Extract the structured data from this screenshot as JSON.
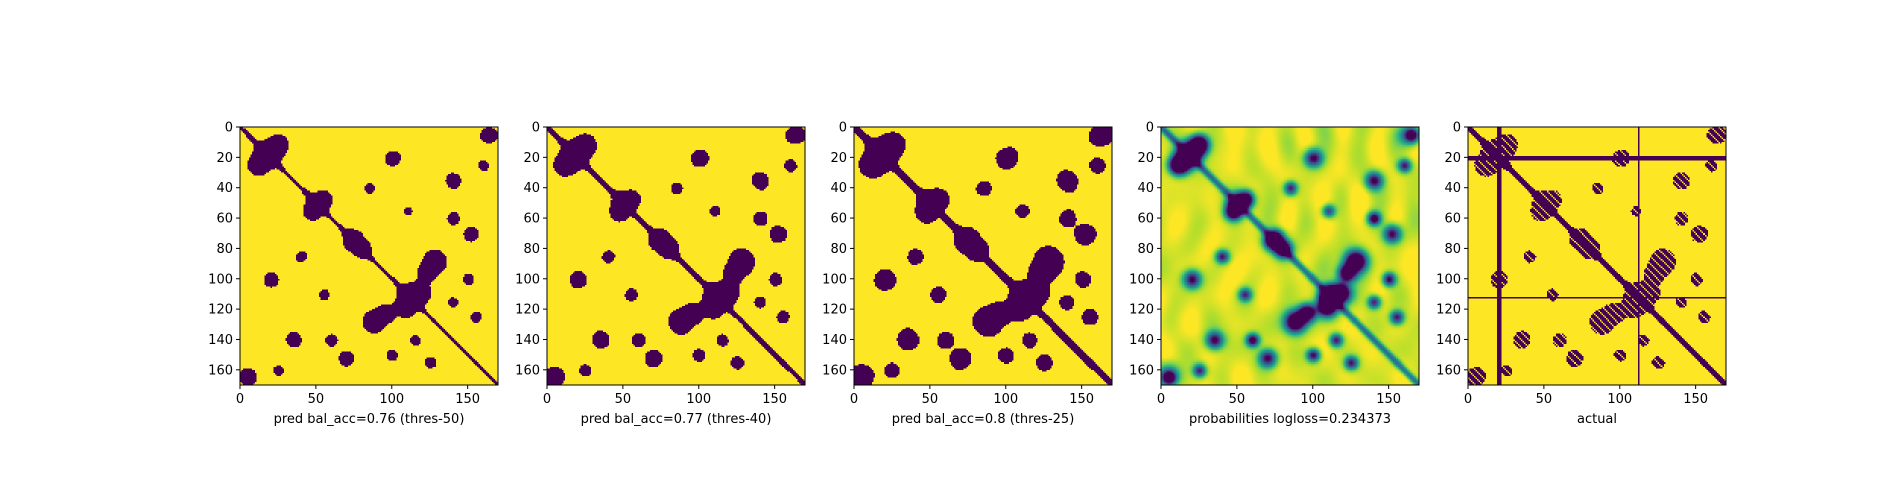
{
  "chart_data": [
    {
      "type": "heatmap",
      "title": "",
      "xlabel": "pred bal_acc=0.76 (thres-50)",
      "ylabel": "",
      "xlim": [
        0,
        170
      ],
      "ylim": [
        170,
        0
      ],
      "xticks": [
        0,
        50,
        100,
        150
      ],
      "yticks": [
        0,
        20,
        40,
        60,
        80,
        100,
        120,
        140,
        160
      ],
      "colormap": "viridis",
      "threshold_level": 0.5,
      "colors": {
        "low": "#440154",
        "high": "#fde725"
      }
    },
    {
      "type": "heatmap",
      "title": "",
      "xlabel": "pred bal_acc=0.77 (thres-40)",
      "ylabel": "",
      "xlim": [
        0,
        170
      ],
      "ylim": [
        170,
        0
      ],
      "xticks": [
        0,
        50,
        100,
        150
      ],
      "yticks": [
        0,
        20,
        40,
        60,
        80,
        100,
        120,
        140,
        160
      ],
      "colormap": "viridis",
      "threshold_level": 0.4,
      "colors": {
        "low": "#440154",
        "high": "#fde725"
      }
    },
    {
      "type": "heatmap",
      "title": "",
      "xlabel": "pred bal_acc=0.8 (thres-25)",
      "ylabel": "",
      "xlim": [
        0,
        170
      ],
      "ylim": [
        170,
        0
      ],
      "xticks": [
        0,
        50,
        100,
        150
      ],
      "yticks": [
        0,
        20,
        40,
        60,
        80,
        100,
        120,
        140,
        160
      ],
      "colormap": "viridis",
      "threshold_level": 0.25,
      "colors": {
        "low": "#440154",
        "high": "#fde725"
      }
    },
    {
      "type": "heatmap",
      "title": "",
      "xlabel": "probabilities logloss=0.234373",
      "ylabel": "",
      "xlim": [
        0,
        170
      ],
      "ylim": [
        170,
        0
      ],
      "xticks": [
        0,
        50,
        100,
        150
      ],
      "yticks": [
        0,
        20,
        40,
        60,
        80,
        100,
        120,
        140,
        160
      ],
      "colormap": "viridis",
      "continuous": true,
      "colors": {
        "low": "#440154",
        "mid": "#21918c",
        "high": "#fde725"
      }
    },
    {
      "type": "heatmap",
      "title": "",
      "xlabel": "actual",
      "ylabel": "",
      "xlim": [
        0,
        170
      ],
      "ylim": [
        170,
        0
      ],
      "xticks": [
        0,
        50,
        100,
        150
      ],
      "yticks": [
        0,
        20,
        40,
        60,
        80,
        100,
        120,
        140,
        160
      ],
      "colormap": "viridis",
      "binary": true,
      "masked_rows": [
        19,
        20,
        21,
        112
      ],
      "masked_cols": [
        19,
        20,
        21,
        112
      ],
      "colors": {
        "low": "#440154",
        "high": "#fde725"
      }
    }
  ]
}
